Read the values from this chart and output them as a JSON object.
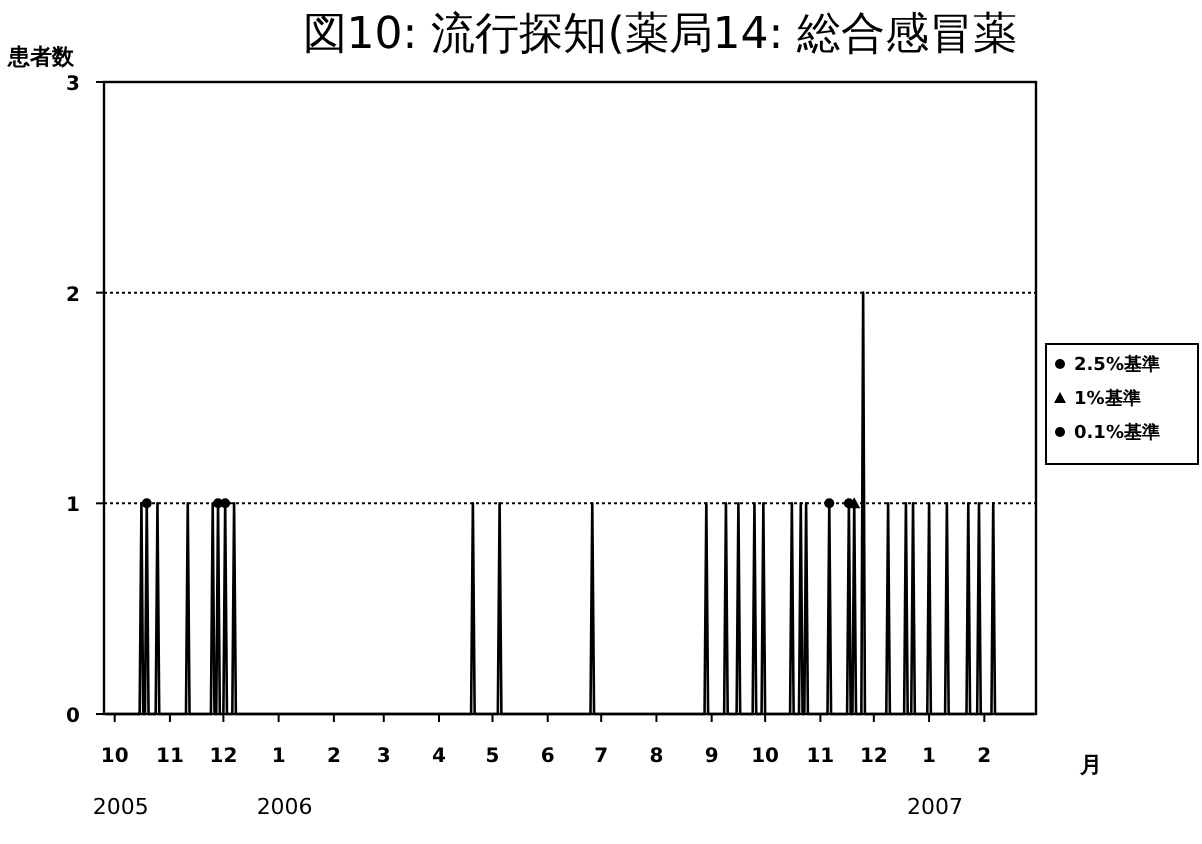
{
  "chart_data": {
    "type": "line",
    "title": "図10: 流行探知(薬局14: 総合感冒薬",
    "xlabel": "月",
    "ylabel": "患者数",
    "annotations": [
      "2005",
      "2006",
      "2007"
    ],
    "xlim": [
      "2005-09-25",
      "2007-03-02"
    ],
    "xticks": [
      {
        "value": "2005-10-01",
        "label": "10"
      },
      {
        "value": "2005-11-01",
        "label": "11"
      },
      {
        "value": "2005-12-01",
        "label": "12"
      },
      {
        "value": "2006-01-01",
        "label": "1"
      },
      {
        "value": "2006-02-01",
        "label": "2"
      },
      {
        "value": "2006-03-01",
        "label": "3"
      },
      {
        "value": "2006-04-01",
        "label": "4"
      },
      {
        "value": "2006-05-01",
        "label": "5"
      },
      {
        "value": "2006-06-01",
        "label": "6"
      },
      {
        "value": "2006-07-01",
        "label": "7"
      },
      {
        "value": "2006-08-01",
        "label": "8"
      },
      {
        "value": "2006-09-01",
        "label": "9"
      },
      {
        "value": "2006-10-01",
        "label": "10"
      },
      {
        "value": "2006-11-01",
        "label": "11"
      },
      {
        "value": "2006-12-01",
        "label": "12"
      },
      {
        "value": "2007-01-01",
        "label": "1"
      },
      {
        "value": "2007-02-01",
        "label": "2"
      }
    ],
    "ylim": [
      0,
      3
    ],
    "yticks": [
      0,
      1,
      2,
      3
    ],
    "grid": "y",
    "legend": "right",
    "series": [
      {
        "color": "#000000",
        "x": [
          "2005-09-26",
          "2005-10-15",
          "2005-10-16",
          "2005-10-17",
          "2005-10-18",
          "2005-10-19",
          "2005-10-20",
          "2005-10-24",
          "2005-10-25",
          "2005-10-26",
          "2005-11-10",
          "2005-11-11",
          "2005-11-12",
          "2005-11-24",
          "2005-11-25",
          "2005-11-26",
          "2005-11-27",
          "2005-11-28",
          "2005-11-29",
          "2005-12-01",
          "2005-12-02",
          "2005-12-03",
          "2005-12-06",
          "2005-12-07",
          "2005-12-08",
          "2006-04-19",
          "2006-04-20",
          "2006-04-21",
          "2006-05-04",
          "2006-05-05",
          "2006-05-06",
          "2006-06-25",
          "2006-06-26",
          "2006-06-27",
          "2006-08-28",
          "2006-08-29",
          "2006-08-30",
          "2006-09-08",
          "2006-09-09",
          "2006-09-10",
          "2006-09-15",
          "2006-09-16",
          "2006-09-17",
          "2006-09-24",
          "2006-09-25",
          "2006-09-26",
          "2006-09-29",
          "2006-09-30",
          "2006-10-01",
          "2006-10-15",
          "2006-10-16",
          "2006-10-17",
          "2006-10-20",
          "2006-10-21",
          "2006-10-22",
          "2006-10-23",
          "2006-10-24",
          "2006-10-25",
          "2006-11-05",
          "2006-11-06",
          "2006-11-07",
          "2006-11-16",
          "2006-11-17",
          "2006-11-18",
          "2006-11-19",
          "2006-11-20",
          "2006-11-21",
          "2006-11-24",
          "2006-11-25",
          "2006-11-26",
          "2006-12-08",
          "2006-12-09",
          "2006-12-10",
          "2006-12-18",
          "2006-12-19",
          "2006-12-20",
          "2006-12-22",
          "2006-12-23",
          "2006-12-24",
          "2006-12-31",
          "2007-01-01",
          "2007-01-02",
          "2007-01-10",
          "2007-01-11",
          "2007-01-12",
          "2007-01-22",
          "2007-01-23",
          "2007-01-24",
          "2007-01-28",
          "2007-01-29",
          "2007-01-30",
          "2007-02-05",
          "2007-02-06",
          "2007-02-07",
          "2007-03-01"
        ],
        "values": [
          0,
          0,
          1,
          0,
          0,
          1,
          0,
          0,
          1,
          0,
          0,
          1,
          0,
          0,
          1,
          0,
          0,
          1,
          0,
          0,
          1,
          0,
          0,
          1,
          0,
          0,
          1,
          0,
          0,
          1,
          0,
          0,
          1,
          0,
          0,
          1,
          0,
          0,
          1,
          0,
          0,
          1,
          0,
          0,
          1,
          0,
          0,
          1,
          0,
          0,
          1,
          0,
          0,
          1,
          0,
          0,
          1,
          0,
          0,
          1,
          0,
          0,
          1,
          0,
          0,
          1,
          0,
          0,
          2,
          0,
          0,
          1,
          0,
          0,
          1,
          0,
          0,
          1,
          0,
          0,
          1,
          0,
          0,
          1,
          0,
          0,
          1,
          0,
          0,
          1,
          0,
          0,
          1,
          0,
          0
        ]
      },
      {
        "type": "scatter",
        "name": "2.5%基準",
        "color": "#000000",
        "marker": "circle",
        "x": [
          "2005-10-19",
          "2005-12-02",
          "2006-11-06",
          "2006-11-17"
        ],
        "values": [
          1,
          1,
          1,
          1
        ]
      },
      {
        "type": "scatter",
        "name": "1%基準",
        "color": "#000000",
        "marker": "triangle",
        "x": [
          "2006-11-20"
        ],
        "values": [
          1
        ]
      },
      {
        "type": "scatter",
        "name": "0.1%基準",
        "color": "#000000",
        "marker": "circle",
        "x": [
          "2005-11-28"
        ],
        "values": [
          1
        ]
      }
    ]
  }
}
